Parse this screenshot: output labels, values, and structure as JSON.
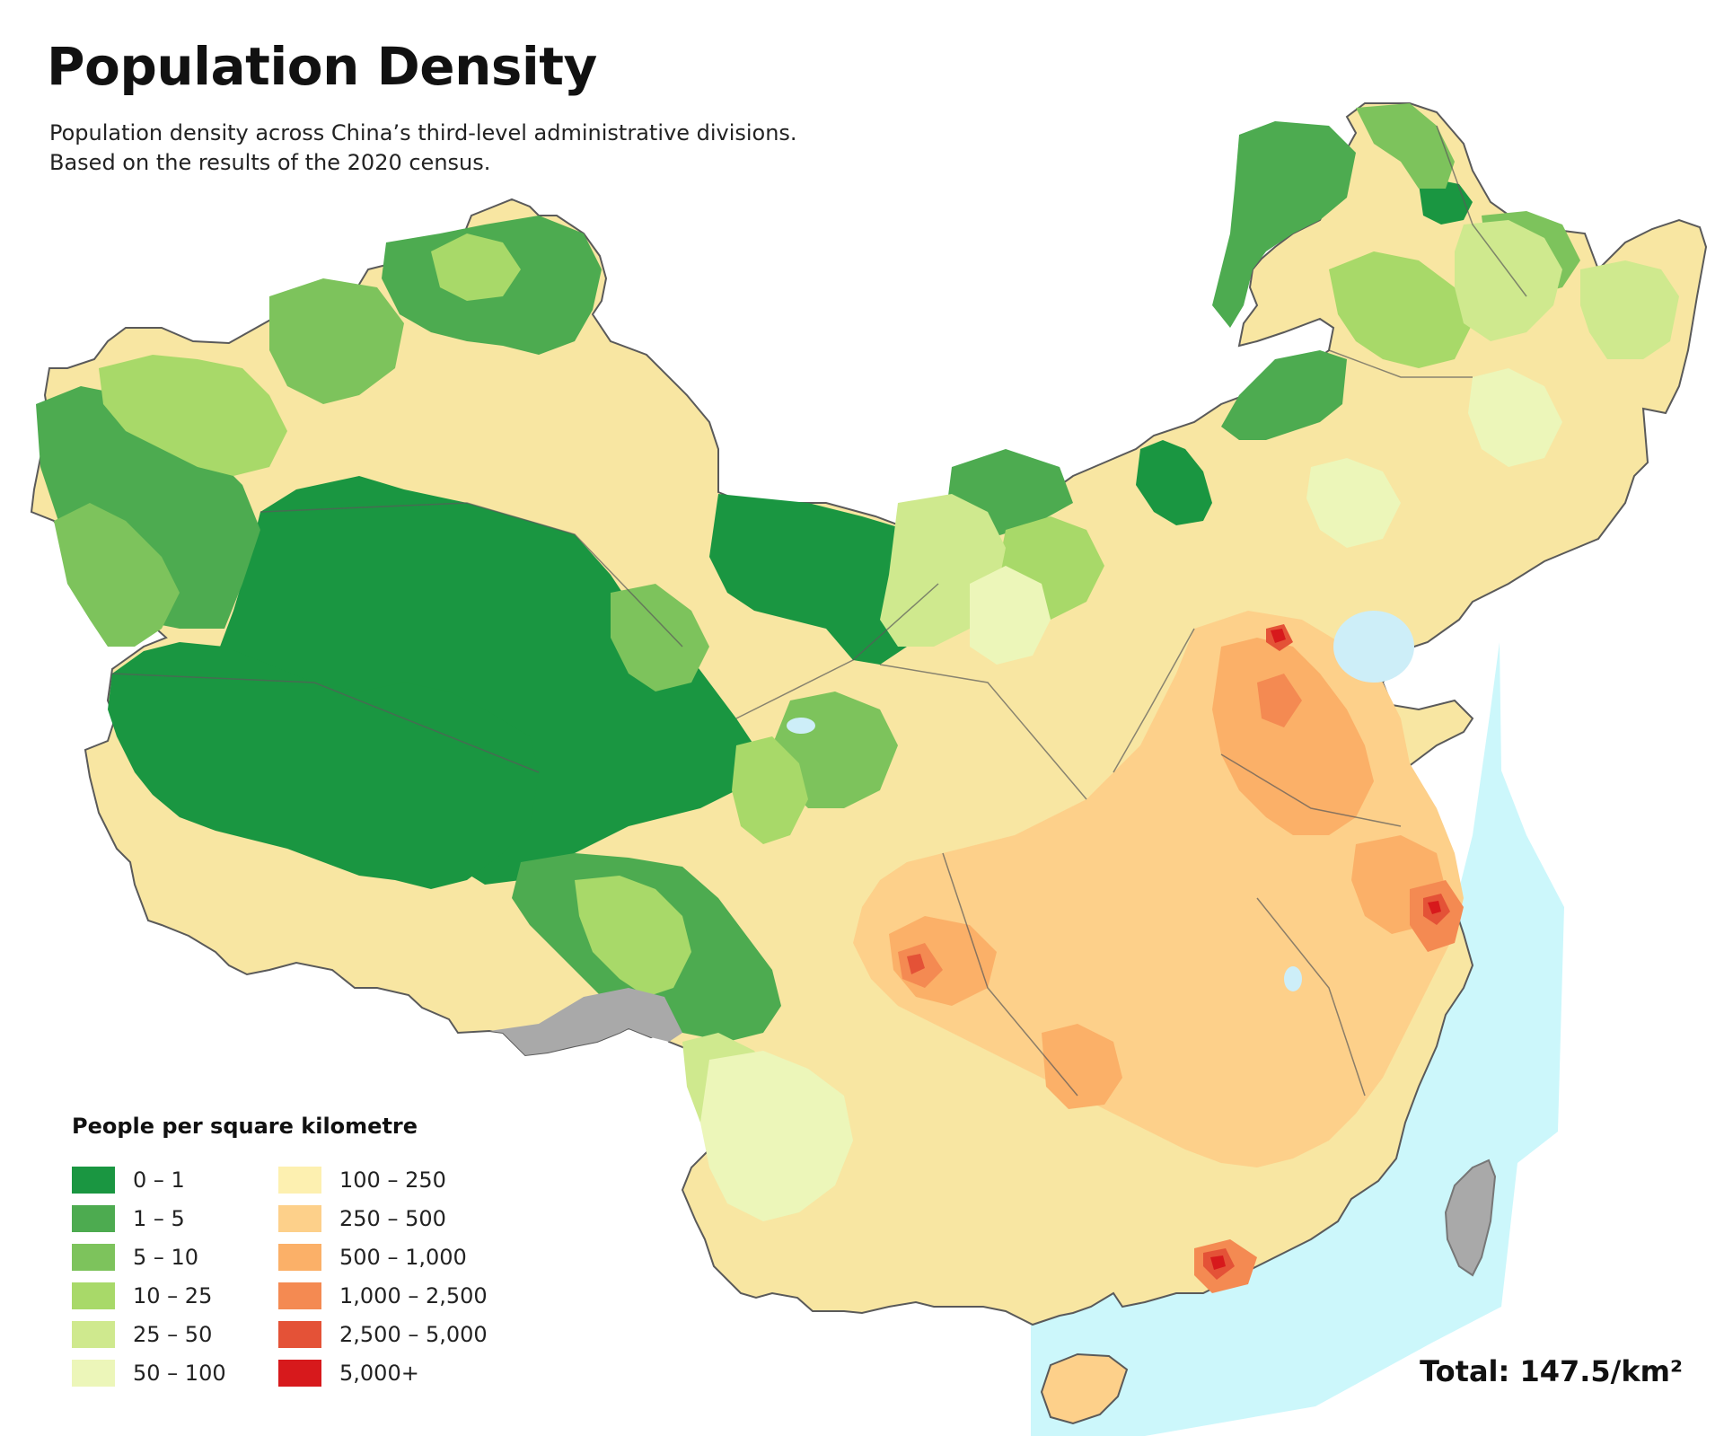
{
  "header": {
    "title": "Population Density",
    "subtitle_line1": "Population density across China’s third-level administrative divisions.",
    "subtitle_line2": "Based on the results of the 2020 census."
  },
  "legend": {
    "title": "People per square kilometre",
    "items": [
      {
        "label": "0 – 1",
        "color": "#1a9641"
      },
      {
        "label": "1 – 5",
        "color": "#4dab50"
      },
      {
        "label": "5 – 10",
        "color": "#7dc35c"
      },
      {
        "label": "10 – 25",
        "color": "#a8d969"
      },
      {
        "label": "25 – 50",
        "color": "#cfe98e"
      },
      {
        "label": "50 – 100",
        "color": "#ecf6b9"
      },
      {
        "label": "100 – 250",
        "color": "#fdf0b0"
      },
      {
        "label": "250 – 500",
        "color": "#fdd08a"
      },
      {
        "label": "500 – 1,000",
        "color": "#fbb068"
      },
      {
        "label": "1,000 – 2,500",
        "color": "#f48a52"
      },
      {
        "label": "2,500 – 5,000",
        "color": "#e45237"
      },
      {
        "label": "5,000+",
        "color": "#d7191c"
      }
    ]
  },
  "total": "Total: 147.5/km²",
  "colors": {
    "sea": "#ccf7fb",
    "lake": "#cdeef8",
    "no_data": "#a9a9a9",
    "border": "#5a5a5a"
  }
}
